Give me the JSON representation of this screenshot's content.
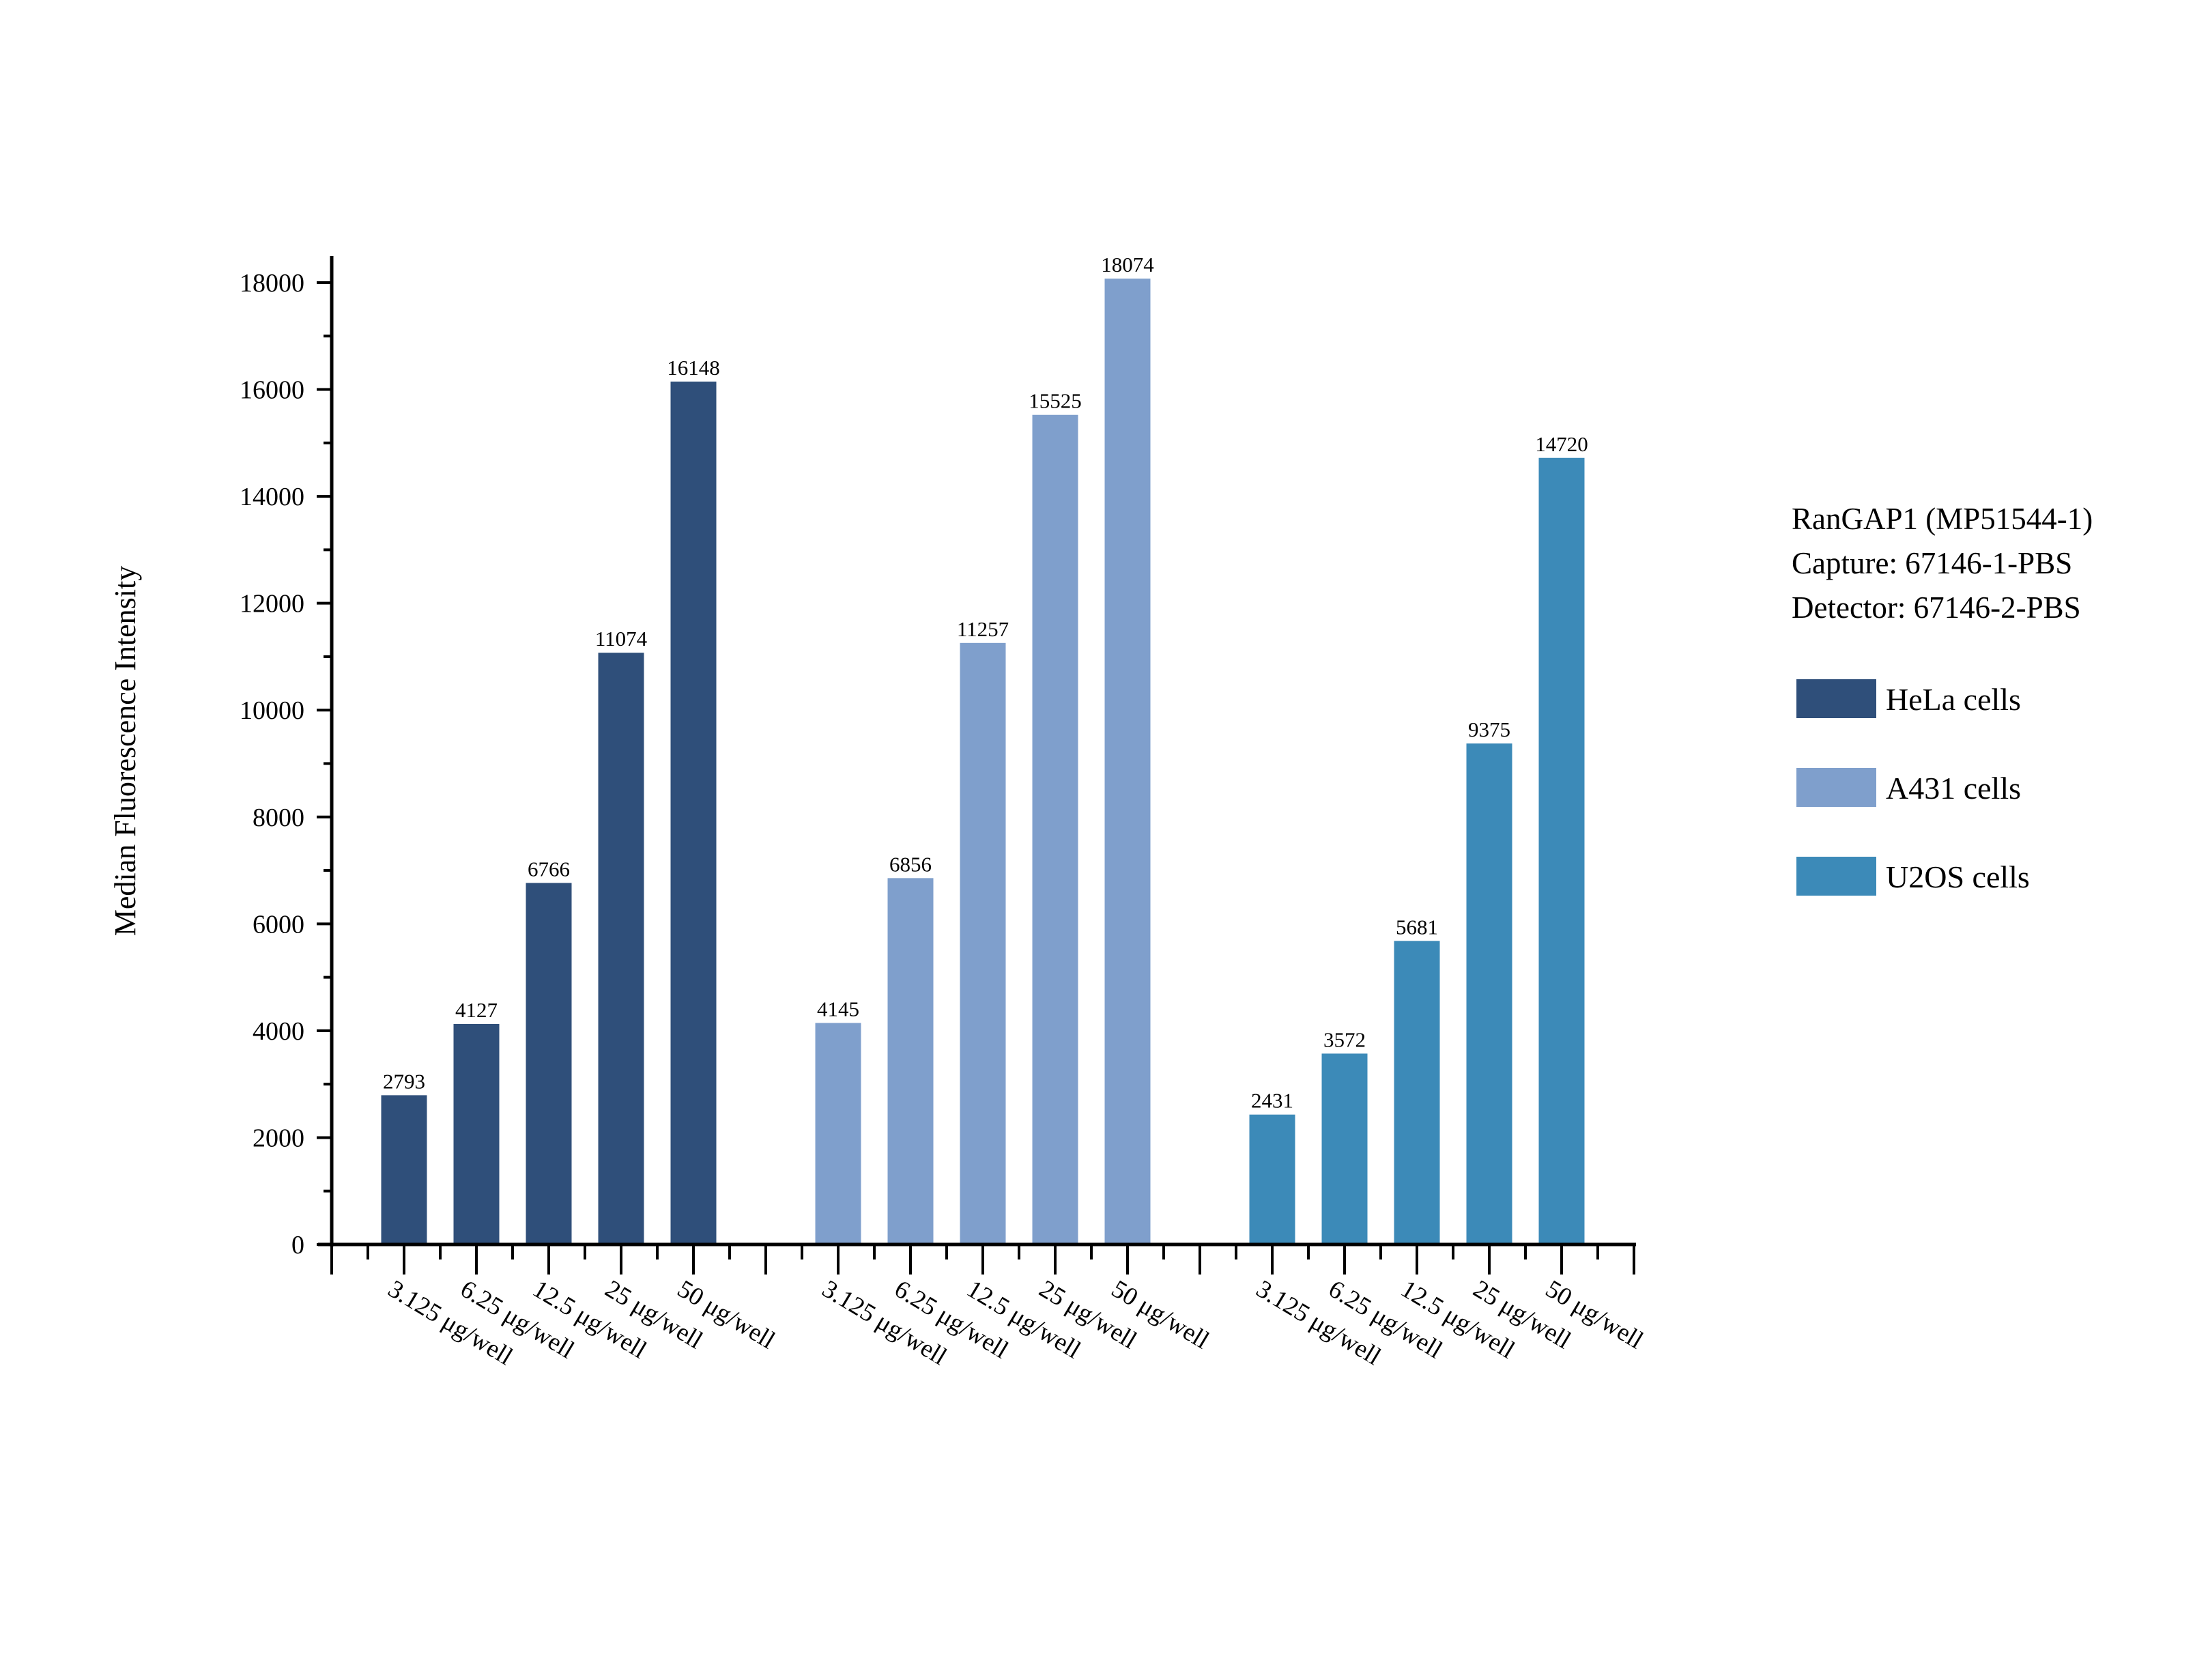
{
  "chart_data": {
    "type": "bar",
    "title": "",
    "xlabel": "",
    "ylabel": "Median Fluorescence Intensity",
    "ylim": [
      0,
      18500
    ],
    "yticks": [
      0,
      2000,
      4000,
      6000,
      8000,
      10000,
      12000,
      14000,
      16000,
      18000
    ],
    "grid": false,
    "legend_placement": "right",
    "legend_title_lines": [
      "RanGAP1 (MP51544-1)",
      "Capture: 67146-1-PBS",
      "Detector: 67146-2-PBS"
    ],
    "categories": [
      "3.125 μg/well",
      "6.25 μg/well",
      "12.5 μg/well",
      "25 μg/well",
      "50 μg/well"
    ],
    "series": [
      {
        "name": "HeLa cells",
        "color": "#2f4f7a",
        "values": [
          2793,
          4127,
          6766,
          11074,
          16148
        ]
      },
      {
        "name": "A431 cells",
        "color": "#7f9fcc",
        "values": [
          4145,
          6856,
          11257,
          15525,
          18074
        ]
      },
      {
        "name": "U2OS cells",
        "color": "#3c8ab8",
        "values": [
          2431,
          3572,
          5681,
          9375,
          14720
        ]
      }
    ]
  }
}
